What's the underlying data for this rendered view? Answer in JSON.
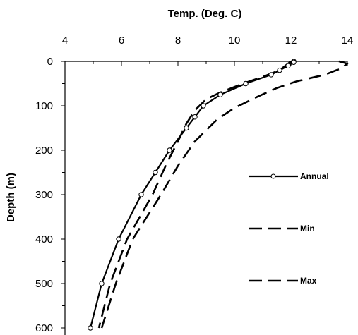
{
  "chart_data": {
    "type": "line",
    "title": "",
    "xlabel": "Temp. (Deg. C)",
    "ylabel": "Depth (m)",
    "x_axis_position": "top",
    "y_axis_inverted": true,
    "xlim": [
      4,
      14
    ],
    "ylim": [
      0,
      600
    ],
    "x_ticks": [
      "4",
      "6",
      "8",
      "10",
      "12",
      "14"
    ],
    "y_ticks": [
      "0",
      "100",
      "200",
      "300",
      "400",
      "500",
      "600"
    ],
    "grid": false,
    "legend_position": "right",
    "series": [
      {
        "name": "Annual",
        "style": "solid-with-markers",
        "color": "#000000",
        "points": [
          [
            12.1,
            0
          ],
          [
            12.1,
            2
          ],
          [
            11.9,
            10
          ],
          [
            11.6,
            20
          ],
          [
            11.3,
            30
          ],
          [
            10.4,
            50
          ],
          [
            9.5,
            75
          ],
          [
            8.9,
            100
          ],
          [
            8.6,
            125
          ],
          [
            8.3,
            150
          ],
          [
            7.7,
            200
          ],
          [
            7.2,
            250
          ],
          [
            6.7,
            300
          ],
          [
            5.9,
            400
          ],
          [
            5.3,
            500
          ],
          [
            4.9,
            600
          ]
        ]
      },
      {
        "name": "Min",
        "style": "long-dash",
        "color": "#000000",
        "points": [
          [
            12.0,
            0
          ],
          [
            11.6,
            20
          ],
          [
            11.0,
            35
          ],
          [
            10.3,
            50
          ],
          [
            9.5,
            70
          ],
          [
            9.0,
            85
          ],
          [
            8.6,
            110
          ],
          [
            8.3,
            140
          ],
          [
            8.0,
            180
          ],
          [
            7.6,
            230
          ],
          [
            7.1,
            300
          ],
          [
            6.2,
            400
          ],
          [
            5.6,
            500
          ],
          [
            5.2,
            600
          ]
        ]
      },
      {
        "name": "Max",
        "style": "long-dash",
        "color": "#000000",
        "points": [
          [
            13.7,
            0
          ],
          [
            14.0,
            5
          ],
          [
            13.8,
            15
          ],
          [
            13.2,
            30
          ],
          [
            12.2,
            45
          ],
          [
            11.5,
            60
          ],
          [
            10.8,
            80
          ],
          [
            10.0,
            105
          ],
          [
            9.4,
            130
          ],
          [
            8.6,
            180
          ],
          [
            8.0,
            235
          ],
          [
            7.4,
            300
          ],
          [
            6.4,
            400
          ],
          [
            5.8,
            500
          ],
          [
            5.3,
            600
          ]
        ]
      }
    ]
  }
}
